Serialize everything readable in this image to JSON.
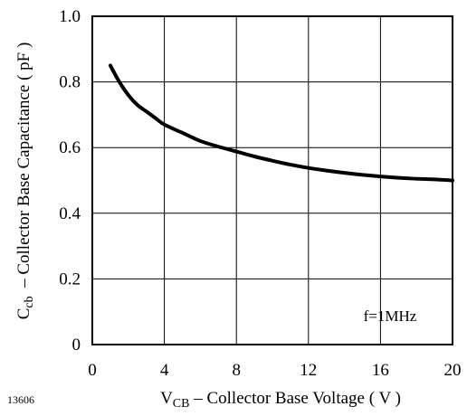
{
  "figure_id": "13606",
  "chart_data": {
    "type": "line",
    "title": "",
    "xlabel_main": "V",
    "xlabel_sub": "CB",
    "xlabel_rest": " – Collector Base Voltage ( V )",
    "ylabel_main": "C",
    "ylabel_sub": "cb",
    "ylabel_rest": "  – Collector Base Capacitance ( pF )",
    "xlim": [
      0,
      20
    ],
    "ylim": [
      0,
      1.0
    ],
    "xticks": [
      0,
      4,
      8,
      12,
      16,
      20
    ],
    "yticks": [
      0,
      0.2,
      0.4,
      0.6,
      0.8,
      1.0
    ],
    "xtick_labels": [
      "0",
      "4",
      "8",
      "12",
      "16",
      "20"
    ],
    "ytick_labels": [
      "0",
      "0.2",
      "0.4",
      "0.6",
      "0.8",
      "1.0"
    ],
    "grid": true,
    "annotation": "f=1MHz",
    "line_color": "#000000",
    "series": [
      {
        "x": [
          1.0,
          1.5,
          2.0,
          2.5,
          3.0,
          3.5,
          4.0,
          5.0,
          6.0,
          7.0,
          8.0,
          9.0,
          10.0,
          11.0,
          12.0,
          13.0,
          14.0,
          15.0,
          16.0,
          17.0,
          18.0,
          19.0,
          20.0
        ],
        "y": [
          0.85,
          0.8,
          0.76,
          0.73,
          0.71,
          0.69,
          0.67,
          0.645,
          0.62,
          0.603,
          0.588,
          0.573,
          0.56,
          0.548,
          0.538,
          0.53,
          0.523,
          0.517,
          0.512,
          0.508,
          0.505,
          0.503,
          0.5
        ]
      }
    ]
  }
}
